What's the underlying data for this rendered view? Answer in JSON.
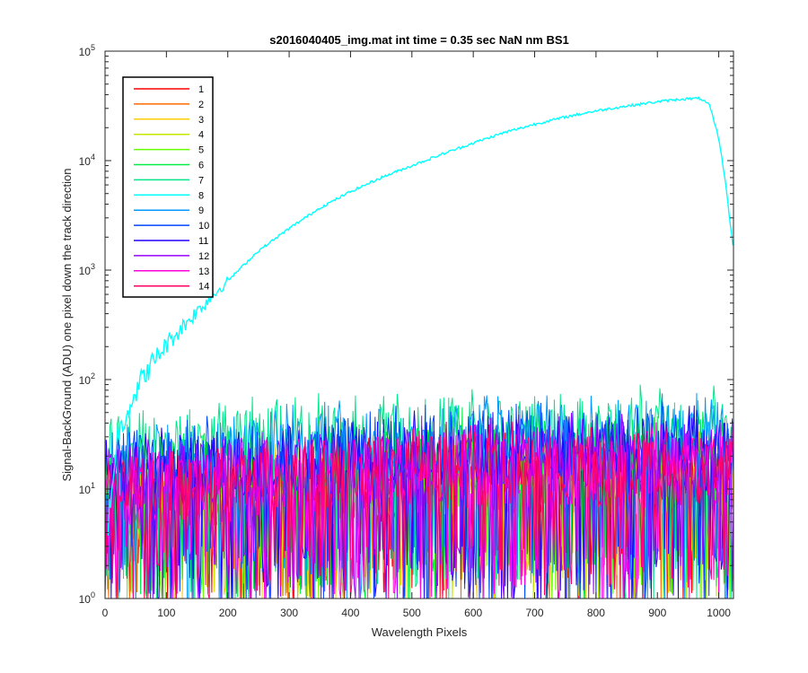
{
  "chart_data": {
    "type": "line",
    "title": "s2016040405_img.mat int time = 0.35 sec  NaN nm BS1",
    "xlabel": "Wavelength Pixels",
    "ylabel": "Signal-BackGround (ADU) one pixel down the track direction",
    "xlim": [
      0,
      1024
    ],
    "ylim": [
      1,
      100000
    ],
    "yscale": "log",
    "x_ticks": [
      0,
      100,
      200,
      300,
      400,
      500,
      600,
      700,
      800,
      900,
      1000
    ],
    "y_ticks": [
      1,
      10,
      100,
      1000,
      10000,
      100000
    ],
    "y_tick_labels": [
      {
        "base": "10",
        "exp": "0"
      },
      {
        "base": "10",
        "exp": "1"
      },
      {
        "base": "10",
        "exp": "2"
      },
      {
        "base": "10",
        "exp": "3"
      },
      {
        "base": "10",
        "exp": "4"
      },
      {
        "base": "10",
        "exp": "5"
      }
    ],
    "grid": false,
    "legend_position": "top-left",
    "series": [
      {
        "name": "1",
        "color": "#ff0000",
        "level": 8,
        "kind": "noise"
      },
      {
        "name": "2",
        "color": "#ff6a00",
        "level": 8,
        "kind": "noise"
      },
      {
        "name": "3",
        "color": "#ffcc00",
        "level": 8,
        "kind": "noise"
      },
      {
        "name": "4",
        "color": "#c8e600",
        "level": 8,
        "kind": "noise"
      },
      {
        "name": "5",
        "color": "#66ff00",
        "level": 9,
        "kind": "noise"
      },
      {
        "name": "6",
        "color": "#00ee44",
        "level": 14,
        "kind": "noise"
      },
      {
        "name": "7",
        "color": "#00e68a",
        "level": 22,
        "kind": "noise"
      },
      {
        "name": "8",
        "color": "#00ffff",
        "kind": "signal",
        "x": [
          5,
          20,
          40,
          60,
          80,
          100,
          130,
          160,
          200,
          250,
          300,
          350,
          400,
          450,
          500,
          550,
          600,
          650,
          700,
          750,
          800,
          850,
          900,
          940,
          970,
          985,
          1000,
          1010,
          1024
        ],
        "y": [
          5,
          30,
          60,
          100,
          150,
          210,
          320,
          480,
          800,
          1500,
          2400,
          3700,
          5200,
          7000,
          9000,
          11500,
          14500,
          18000,
          21500,
          25000,
          28500,
          31500,
          34500,
          36500,
          37000,
          32000,
          16000,
          7000,
          1500
        ]
      },
      {
        "name": "9",
        "color": "#0099ff",
        "level": 18,
        "kind": "noise"
      },
      {
        "name": "10",
        "color": "#0044ff",
        "level": 16,
        "kind": "noise"
      },
      {
        "name": "11",
        "color": "#2200ff",
        "level": 14,
        "kind": "noise"
      },
      {
        "name": "12",
        "color": "#9900ff",
        "level": 12,
        "kind": "noise"
      },
      {
        "name": "13",
        "color": "#ff00dd",
        "level": 10,
        "kind": "noise"
      },
      {
        "name": "14",
        "color": "#ff0066",
        "level": 10,
        "kind": "noise"
      }
    ]
  }
}
